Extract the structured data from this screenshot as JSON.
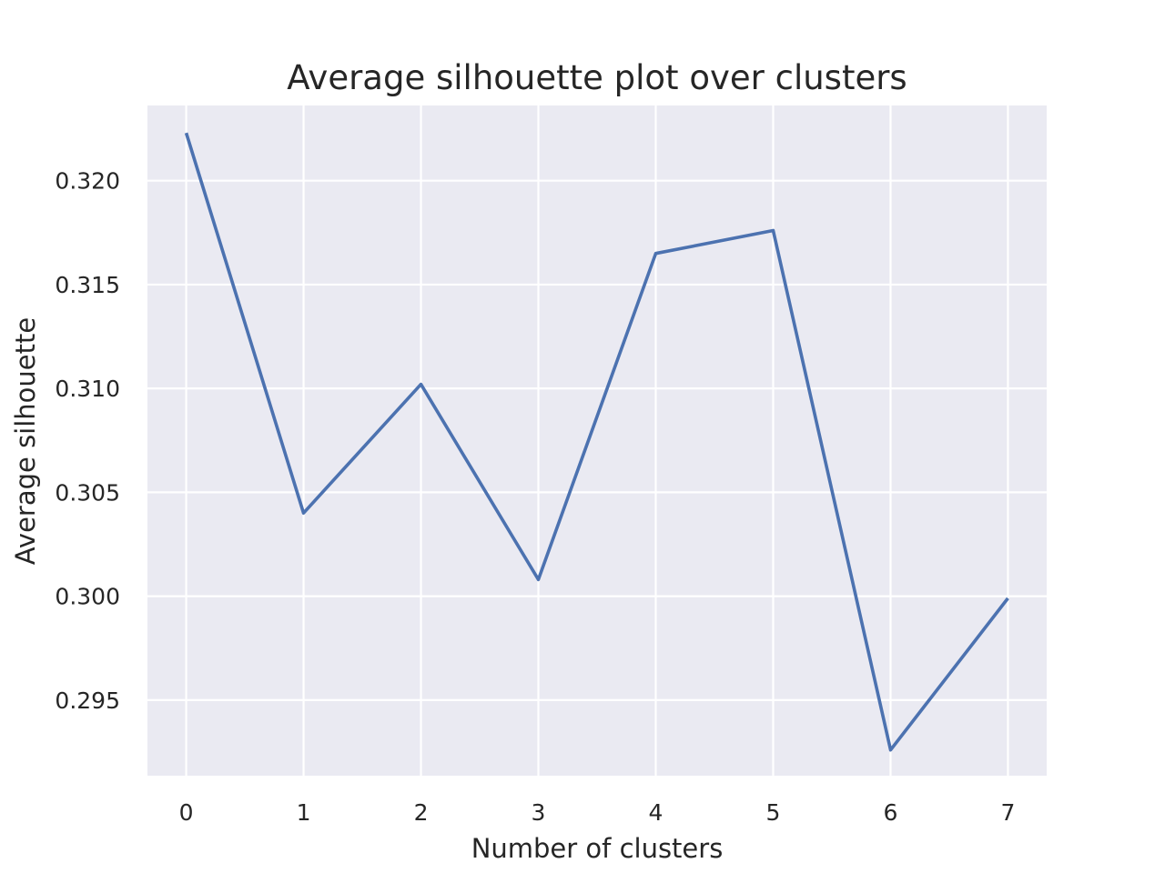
{
  "chart_data": {
    "type": "line",
    "title": "Average silhouette plot over clusters",
    "xlabel": "Number of clusters",
    "ylabel": "Average silhouette",
    "x": [
      0,
      1,
      2,
      3,
      4,
      5,
      6,
      7
    ],
    "series": [
      {
        "values": [
          0.3223,
          0.304,
          0.3102,
          0.3008,
          0.3165,
          0.3176,
          0.2926,
          0.2999
        ]
      }
    ],
    "x_ticks": [
      "0",
      "1",
      "2",
      "3",
      "4",
      "5",
      "6",
      "7"
    ],
    "y_ticks": [
      "0.295",
      "0.300",
      "0.305",
      "0.310",
      "0.315",
      "0.320"
    ],
    "xlim": [
      -0.33,
      7.33
    ],
    "ylim": [
      0.29136,
      0.32362
    ],
    "grid": true,
    "colors": {
      "line": "#4c72b0",
      "plot_background": "#eaeaf2",
      "grid": "#ffffff",
      "text": "#262626"
    }
  }
}
